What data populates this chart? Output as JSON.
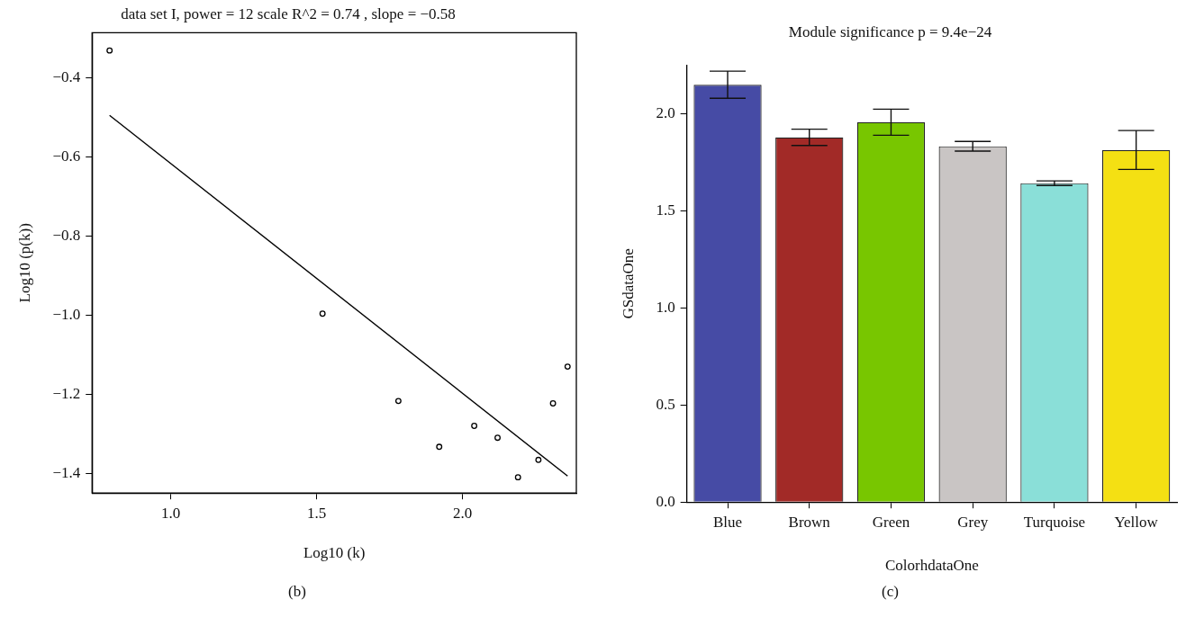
{
  "chart_data": [
    {
      "type": "scatter",
      "title": "data set I, power = 12 scale R^2 = 0.74 , slope = −0.58",
      "xlabel": "Log10 (k)",
      "ylabel": "Log10 (p(k))",
      "annotations": [
        "(b)"
      ],
      "xlim": [
        0.73,
        2.39
      ],
      "ylim": [
        -1.45,
        -0.285
      ],
      "xticks": [
        {
          "value": 1,
          "label": "1.0"
        },
        {
          "value": 1.5,
          "label": "1.5"
        },
        {
          "value": 2,
          "label": "2.0"
        }
      ],
      "yticks": [
        {
          "value": -1.4,
          "label": "−1.4"
        },
        {
          "value": -1.2,
          "label": "−1.2"
        },
        {
          "value": -1,
          "label": "−1.0"
        },
        {
          "value": -0.8,
          "label": "−0.8"
        },
        {
          "value": -0.6,
          "label": "−0.6"
        },
        {
          "value": -0.4,
          "label": "−0.4"
        }
      ],
      "grid": false,
      "legend": false,
      "series": [
        {
          "type": "scatter",
          "color": "#000000",
          "marker": "circle",
          "x": [
            0.79,
            1.52,
            1.78,
            1.92,
            2.04,
            2.12,
            2.19,
            2.26,
            2.31,
            2.36
          ],
          "values": [
            -0.33,
            -0.996,
            -1.217,
            -1.333,
            -1.28,
            -1.31,
            -1.41,
            -1.366,
            -1.223,
            -1.13
          ]
        },
        {
          "type": "line",
          "color": "#000000",
          "marker": "none",
          "x": [
            0.79,
            2.36
          ],
          "values": [
            -0.494,
            -1.407
          ]
        }
      ]
    },
    {
      "type": "bar",
      "title": "Module significance p = 9.4e−24",
      "xlabel": "ColorhdataOne",
      "ylabel": "GSdataOne",
      "annotations": [
        "(c)"
      ],
      "categories": [
        "Blue",
        "Brown",
        "Green",
        "Grey",
        "Turquoise",
        "Yellow"
      ],
      "values": [
        2.149,
        1.878,
        1.956,
        1.832,
        1.642,
        1.813
      ],
      "errors": [
        0.07,
        0.042,
        0.067,
        0.025,
        0.012,
        0.1
      ],
      "colors": [
        "#464ba5",
        "#a22a27",
        "#78c600",
        "#c9c5c4",
        "#8adfd8",
        "#f4e013"
      ],
      "ylim": [
        0,
        2.25
      ],
      "yticks": [
        {
          "value": 0,
          "label": "0.0"
        },
        {
          "value": 0.5,
          "label": "0.5"
        },
        {
          "value": 1,
          "label": "1.0"
        },
        {
          "value": 1.5,
          "label": "1.5"
        },
        {
          "value": 2,
          "label": "2.0"
        }
      ],
      "grid": false,
      "legend": false
    }
  ]
}
